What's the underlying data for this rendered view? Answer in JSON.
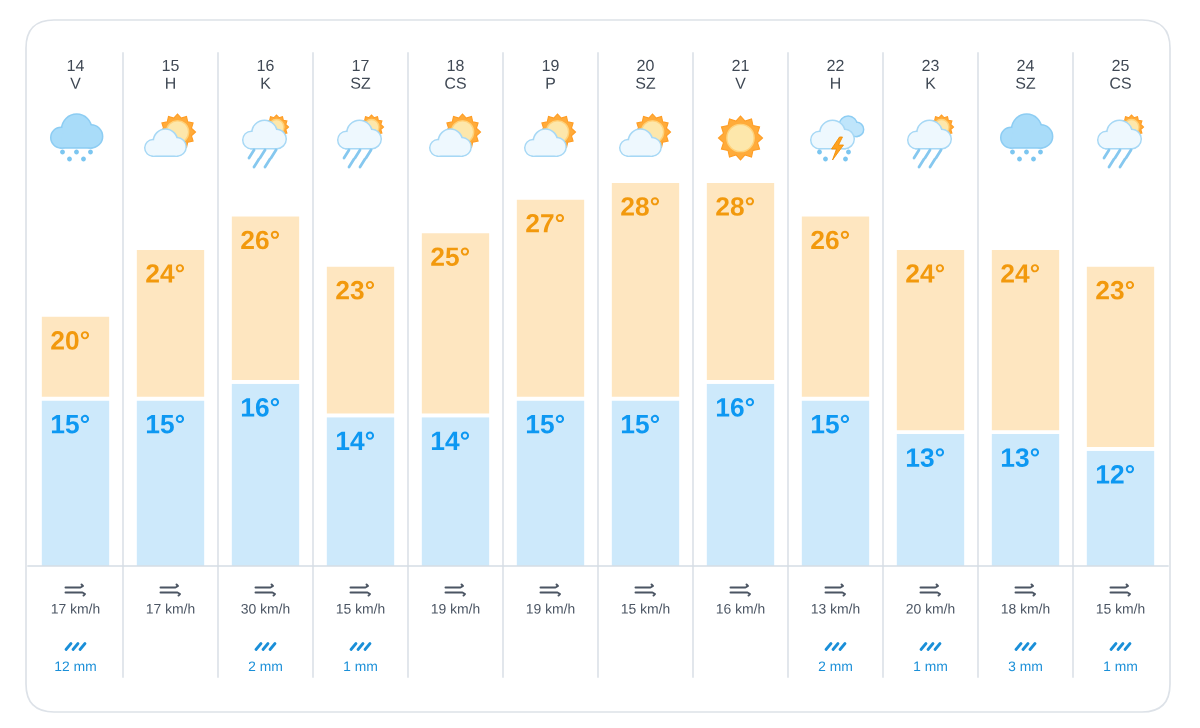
{
  "chart_data": [
    {
      "type": "bar",
      "categories": [
        "14\nV",
        "15\nH",
        "16\nK",
        "17\nSZ",
        "18\nCS",
        "19\nP",
        "20\nSZ",
        "21\nV",
        "22\nH",
        "23\nK",
        "24\nSZ",
        "25\nCS"
      ],
      "stacked": true,
      "series": [
        {
          "color": "#cde9fb",
          "values": [
            15,
            15,
            16,
            14,
            14,
            15,
            15,
            16,
            15,
            13,
            13,
            12
          ],
          "value_labels": [
            "15°",
            "15°",
            "16°",
            "14°",
            "14°",
            "15°",
            "15°",
            "16°",
            "15°",
            "13°",
            "13°",
            "12°"
          ]
        },
        {
          "color": "#fee6c0",
          "values": [
            5,
            9,
            10,
            9,
            11,
            12,
            13,
            12,
            11,
            11,
            11,
            11
          ]
        }
      ],
      "totals": [
        "20°",
        "24°",
        "26°",
        "23°",
        "25°",
        "27°",
        "28°",
        "28°",
        "26°",
        "24°",
        "24°",
        "23°"
      ],
      "ylim": [
        5,
        28
      ],
      "tick_labels": "x"
    },
    {
      "type": "other",
      "categories": [
        null,
        null,
        null,
        null,
        null,
        null,
        null,
        null,
        null,
        null,
        null,
        null
      ],
      "color": "#4b5563",
      "values": [
        17,
        17,
        30,
        15,
        19,
        19,
        15,
        16,
        13,
        20,
        18,
        15
      ],
      "value_labels": [
        "17 km/h",
        "17 km/h",
        "30 km/h",
        "15 km/h",
        "19 km/h",
        "19 km/h",
        "15 km/h",
        "16 km/h",
        "13 km/h",
        "20 km/h",
        "18 km/h",
        "15 km/h"
      ]
    },
    {
      "type": "other",
      "categories": [
        null,
        null,
        null,
        null,
        null,
        null,
        null,
        null,
        null,
        null,
        null,
        null
      ],
      "color": "#1a8fd8",
      "values": [
        12,
        null,
        2,
        1,
        null,
        null,
        null,
        null,
        2,
        1,
        3,
        1
      ],
      "value_labels": [
        "12 mm",
        null,
        "2 mm",
        "1 mm",
        null,
        null,
        null,
        null,
        "2 mm",
        "1 mm",
        "3 mm",
        "1 mm"
      ]
    }
  ]
}
